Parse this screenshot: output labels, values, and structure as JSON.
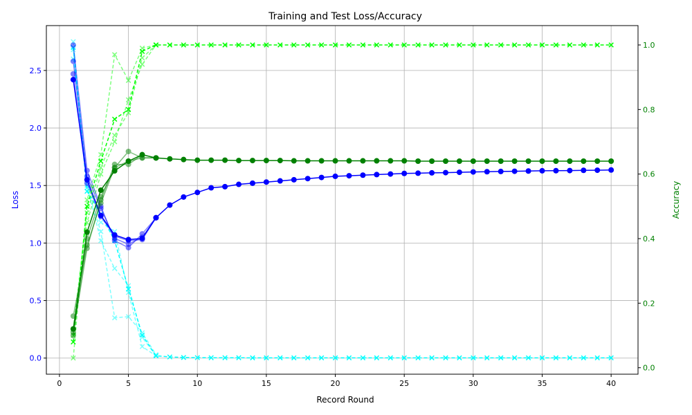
{
  "chart_data": {
    "type": "line",
    "title": "Training and Test Loss/Accuracy",
    "xlabel": "Record Round",
    "ylabel_left": "Loss",
    "ylabel_right": "Accuracy",
    "xlim": [
      -0.95,
      41.95
    ],
    "ylim_left": [
      -0.14,
      2.89
    ],
    "ylim_right": [
      -0.02,
      1.06
    ],
    "x_ticks": [
      0,
      5,
      10,
      15,
      20,
      25,
      30,
      35,
      40
    ],
    "x_tick_labels": [
      "0",
      "5",
      "10",
      "15",
      "20",
      "25",
      "30",
      "35",
      "40"
    ],
    "y_left_ticks": [
      0.0,
      0.5,
      1.0,
      1.5,
      2.0,
      2.5
    ],
    "y_left_tick_labels": [
      "0.0",
      "0.5",
      "1.0",
      "1.5",
      "2.0",
      "2.5"
    ],
    "y_right_ticks": [
      0.0,
      0.2,
      0.4,
      0.6,
      0.8,
      1.0
    ],
    "y_right_tick_labels": [
      "0.0",
      "0.2",
      "0.4",
      "0.6",
      "0.8",
      "1.0"
    ],
    "grid": true,
    "colors": {
      "test_loss": "#0000ff",
      "train_loss": "#00ffff",
      "test_acc": "#008000",
      "train_acc": "#00ff00",
      "left_axis": "#0000ff",
      "right_axis": "#008000"
    },
    "series": [
      {
        "kind": "test_loss",
        "main": true,
        "values": [
          2.42,
          1.55,
          1.24,
          1.07,
          1.03,
          1.04,
          1.22,
          1.33,
          1.4,
          1.44,
          1.48,
          1.49,
          1.51,
          1.52,
          1.53,
          1.54,
          1.55,
          1.56,
          1.57,
          1.58,
          1.585,
          1.59,
          1.595,
          1.6,
          1.605,
          1.607,
          1.61,
          1.612,
          1.615,
          1.618,
          1.62,
          1.622,
          1.624,
          1.626,
          1.628,
          1.629,
          1.63,
          1.632,
          1.633,
          1.635
        ]
      },
      {
        "kind": "test_loss",
        "main": false,
        "values": [
          2.72,
          1.63,
          1.32,
          1.02,
          0.96,
          1.08,
          1.22
        ]
      },
      {
        "kind": "test_loss",
        "main": false,
        "values": [
          2.58,
          1.58,
          1.3,
          1.04,
          0.99,
          1.05,
          1.22
        ]
      },
      {
        "kind": "test_loss",
        "main": false,
        "values": [
          2.47,
          1.52,
          1.23,
          1.06,
          1.02,
          1.03,
          1.22
        ]
      },
      {
        "kind": "train_loss",
        "main": true,
        "values": [
          2.7,
          1.45,
          1.25,
          1.02,
          0.6,
          0.2,
          0.02,
          0.01,
          0.005,
          0.004,
          0.003,
          0.003,
          0.003,
          0.002,
          0.002,
          0.002,
          0.002,
          0.002,
          0.002,
          0.002,
          0.002,
          0.002,
          0.002,
          0.002,
          0.002,
          0.002,
          0.002,
          0.002,
          0.002,
          0.002,
          0.002,
          0.002,
          0.002,
          0.002,
          0.002,
          0.002,
          0.002,
          0.002,
          0.002,
          0.002
        ]
      },
      {
        "kind": "train_loss",
        "main": false,
        "values": [
          2.75,
          1.5,
          1.02,
          0.78,
          0.63,
          0.18,
          0.02
        ]
      },
      {
        "kind": "train_loss",
        "main": false,
        "values": [
          2.68,
          1.48,
          1.1,
          0.35,
          0.36,
          0.22,
          0.03
        ]
      },
      {
        "kind": "train_loss",
        "main": false,
        "values": [
          2.6,
          1.55,
          1.18,
          1.1,
          0.57,
          0.1,
          0.02
        ]
      },
      {
        "kind": "test_acc",
        "main": true,
        "values": [
          0.12,
          0.42,
          0.55,
          0.61,
          0.64,
          0.66,
          0.65,
          0.647,
          0.645,
          0.643,
          0.643,
          0.643,
          0.642,
          0.642,
          0.642,
          0.642,
          0.641,
          0.641,
          0.641,
          0.641,
          0.641,
          0.641,
          0.641,
          0.641,
          0.641,
          0.64,
          0.64,
          0.64,
          0.64,
          0.64,
          0.64,
          0.64,
          0.64,
          0.64,
          0.64,
          0.64,
          0.64,
          0.64,
          0.64,
          0.64
        ]
      },
      {
        "kind": "test_acc",
        "main": false,
        "values": [
          0.16,
          0.38,
          0.51,
          0.62,
          0.67,
          0.65,
          0.65
        ]
      },
      {
        "kind": "test_acc",
        "main": false,
        "values": [
          0.11,
          0.37,
          0.52,
          0.63,
          0.63,
          0.66,
          0.65
        ]
      },
      {
        "kind": "test_acc",
        "main": false,
        "values": [
          0.1,
          0.4,
          0.53,
          0.62,
          0.64,
          0.65,
          0.65
        ]
      },
      {
        "kind": "train_acc",
        "main": true,
        "values": [
          0.08,
          0.5,
          0.64,
          0.77,
          0.8,
          0.98,
          1.0,
          1.0,
          1.0,
          1.0,
          1.0,
          1.0,
          1.0,
          1.0,
          1.0,
          1.0,
          1.0,
          1.0,
          1.0,
          1.0,
          1.0,
          1.0,
          1.0,
          1.0,
          1.0,
          1.0,
          1.0,
          1.0,
          1.0,
          1.0,
          1.0,
          1.0,
          1.0,
          1.0,
          1.0,
          1.0,
          1.0,
          1.0,
          1.0,
          1.0
        ]
      },
      {
        "kind": "train_acc",
        "main": false,
        "values": [
          0.03,
          0.52,
          0.66,
          0.97,
          0.89,
          0.99,
          1.0
        ]
      },
      {
        "kind": "train_acc",
        "main": false,
        "values": [
          0.1,
          0.45,
          0.6,
          0.7,
          0.83,
          0.94,
          1.0
        ]
      },
      {
        "kind": "train_acc",
        "main": false,
        "values": [
          0.12,
          0.48,
          0.62,
          0.72,
          0.79,
          0.96,
          1.0
        ]
      }
    ]
  }
}
